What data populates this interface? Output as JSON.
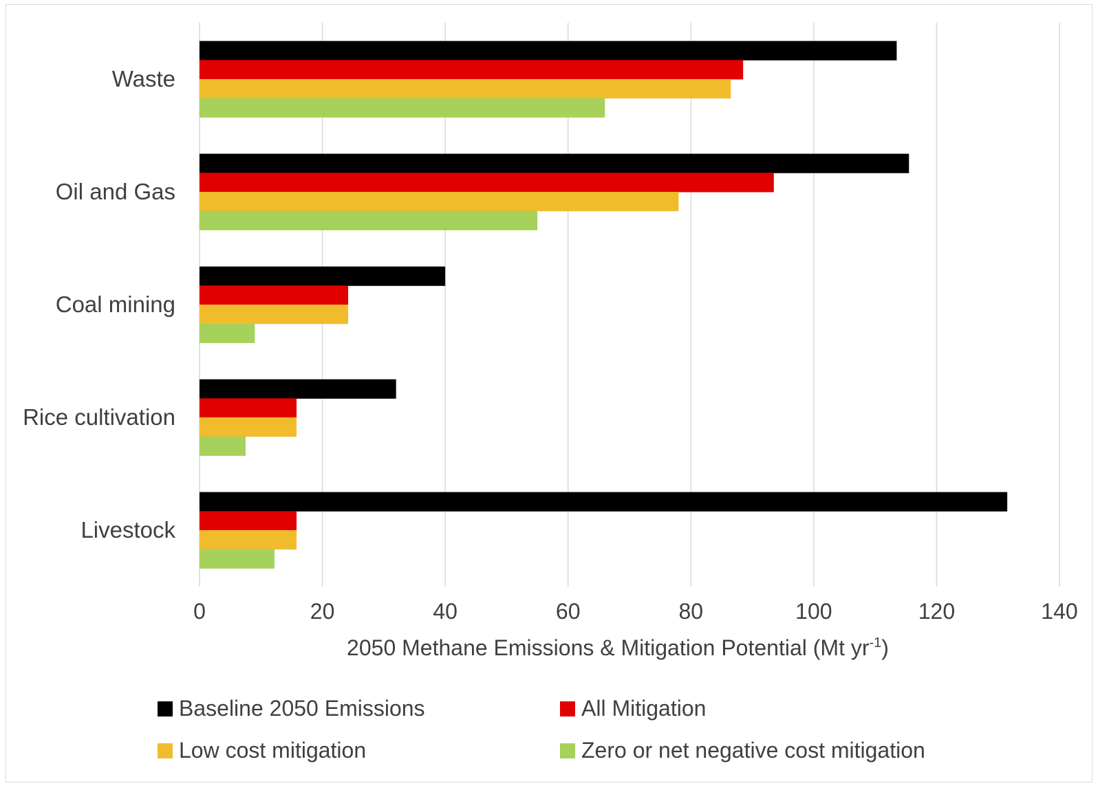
{
  "chart_data": {
    "type": "bar",
    "orientation": "horizontal",
    "categories": [
      "Waste",
      "Oil and Gas",
      "Coal mining",
      "Rice cultivation",
      "Livestock"
    ],
    "series": [
      {
        "name": "Baseline 2050 Emissions",
        "color": "#000000",
        "values": [
          113.5,
          115.5,
          40,
          32,
          131.5
        ]
      },
      {
        "name": "All Mitigation",
        "color": "#e00000",
        "values": [
          88.5,
          93.5,
          24.2,
          15.8,
          15.8
        ]
      },
      {
        "name": "Low cost mitigation",
        "color": "#f0bc2c",
        "values": [
          86.5,
          78,
          24.2,
          15.8,
          15.8
        ]
      },
      {
        "name": "Zero or net negative cost mitigation",
        "color": "#a6d15a",
        "values": [
          66,
          55,
          9,
          7.5,
          12.2
        ]
      }
    ],
    "xlabel": "2050 Methane Emissions & Mitigation Potential (Mt yr",
    "xlabel_superscript": "-1",
    "xlabel_suffix": ")",
    "xticks": [
      "0",
      "20",
      "40",
      "60",
      "80",
      "100",
      "120",
      "140"
    ],
    "xlim": [
      0,
      140
    ],
    "grid": true,
    "legend_position": "bottom"
  }
}
